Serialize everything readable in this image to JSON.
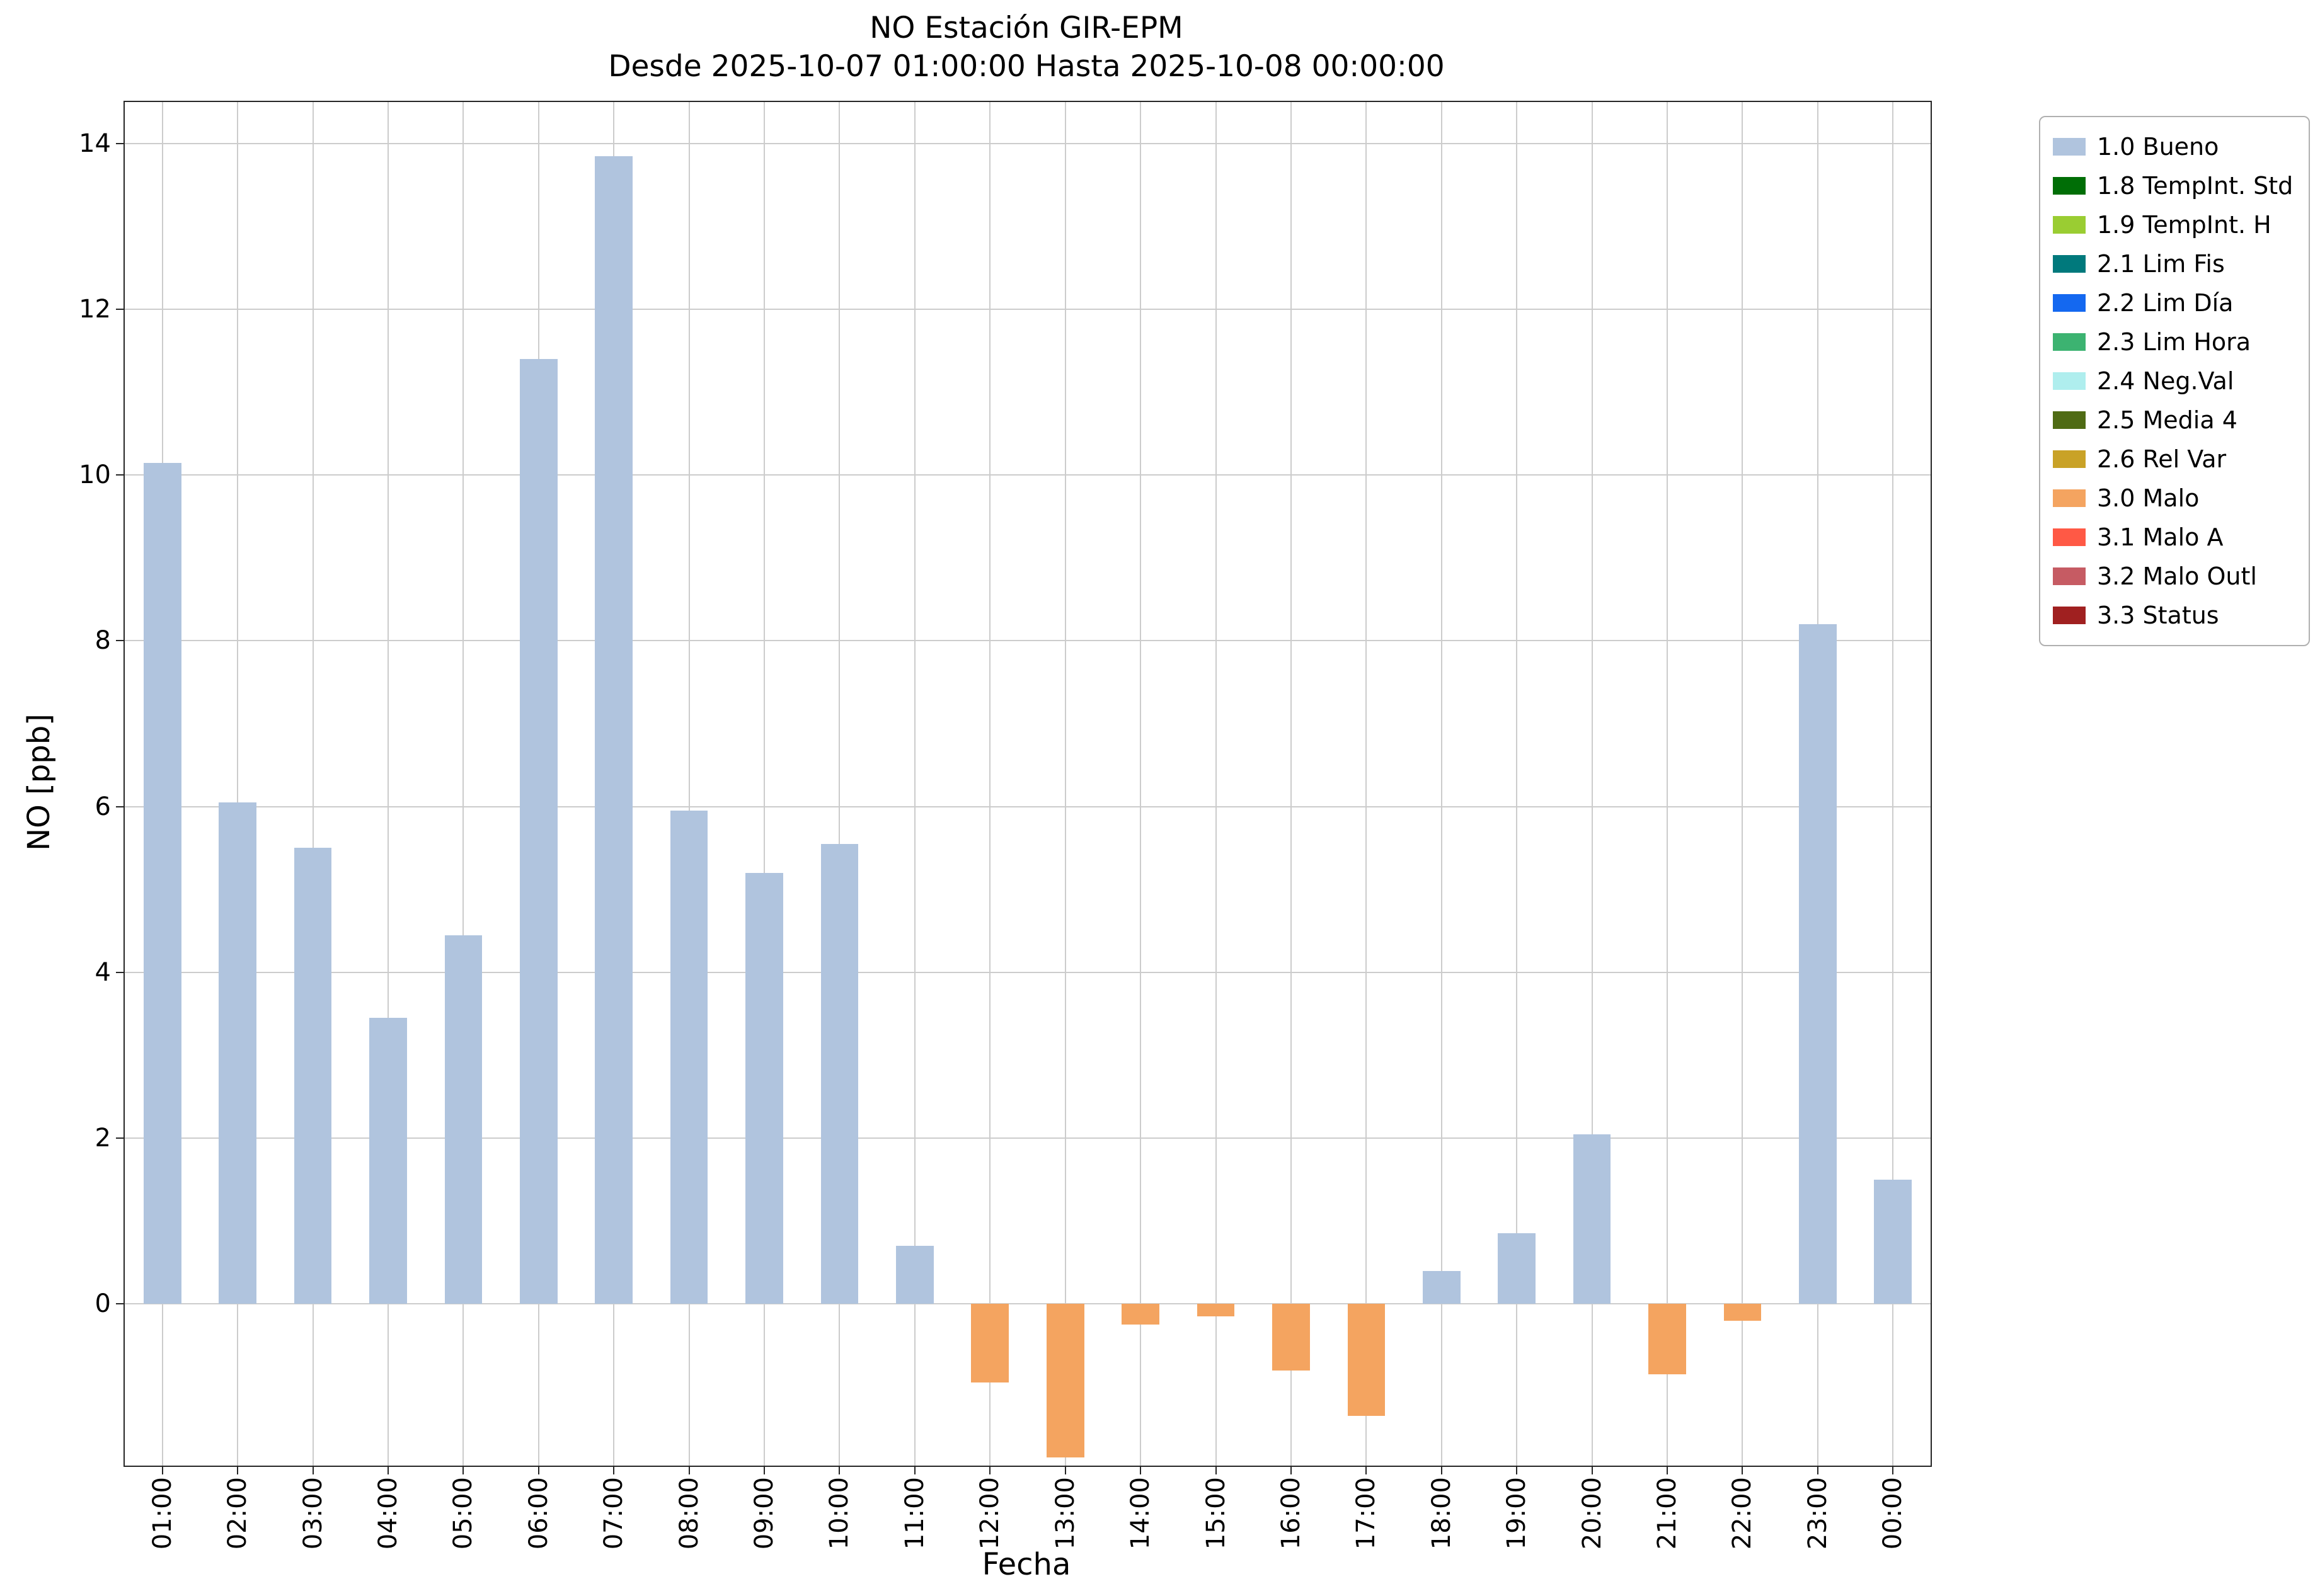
{
  "figure": {
    "title": "NO Estación GIR-EPM",
    "subtitle": "Desde 2025-10-07 01:00:00 Hasta 2025-10-08 00:00:00"
  },
  "chart_data": {
    "type": "bar",
    "title": "NO Estación GIR-EPM",
    "subtitle": "Desde 2025-10-07 01:00:00 Hasta 2025-10-08 00:00:00",
    "xlabel": "Fecha",
    "ylabel": "NO [ppb]",
    "ylim": [
      -1.95,
      14.5
    ],
    "yticks": [
      0,
      2,
      4,
      6,
      8,
      10,
      12,
      14
    ],
    "grid": true,
    "legend_position": "outside-upper-right",
    "bar_width_fraction": 0.5,
    "categories": [
      "01:00",
      "02:00",
      "03:00",
      "04:00",
      "05:00",
      "06:00",
      "07:00",
      "08:00",
      "09:00",
      "10:00",
      "11:00",
      "12:00",
      "13:00",
      "14:00",
      "15:00",
      "16:00",
      "17:00",
      "18:00",
      "19:00",
      "20:00",
      "21:00",
      "22:00",
      "23:00",
      "00:00"
    ],
    "values": [
      10.15,
      6.05,
      5.5,
      3.45,
      4.45,
      11.4,
      13.85,
      5.95,
      5.2,
      5.55,
      0.7,
      -0.95,
      -1.85,
      -0.25,
      -0.15,
      -0.8,
      -1.35,
      0.4,
      0.85,
      2.05,
      -0.85,
      -0.2,
      8.2,
      1.5
    ],
    "bar_flags": [
      "1.0 Bueno",
      "1.0 Bueno",
      "1.0 Bueno",
      "1.0 Bueno",
      "1.0 Bueno",
      "1.0 Bueno",
      "1.0 Bueno",
      "1.0 Bueno",
      "1.0 Bueno",
      "1.0 Bueno",
      "1.0 Bueno",
      "3.0 Malo",
      "3.0 Malo",
      "3.0 Malo",
      "3.0 Malo",
      "3.0 Malo",
      "3.0 Malo",
      "1.0 Bueno",
      "1.0 Bueno",
      "1.0 Bueno",
      "3.0 Malo",
      "3.0 Malo",
      "1.0 Bueno",
      "1.0 Bueno"
    ],
    "legend": [
      {
        "label": "1.0 Bueno",
        "color": "#B0C4DE"
      },
      {
        "label": "1.8 TempInt. Std",
        "color": "#006E06"
      },
      {
        "label": "1.9 TempInt. H",
        "color": "#9ACD32"
      },
      {
        "label": "2.1 Lim Fis",
        "color": "#00797C"
      },
      {
        "label": "2.2 Lim Día",
        "color": "#1468F0"
      },
      {
        "label": "2.3 Lim Hora",
        "color": "#3CB371"
      },
      {
        "label": "2.4 Neg.Val",
        "color": "#AFEEEE"
      },
      {
        "label": "2.5 Media 4",
        "color": "#4F6B14"
      },
      {
        "label": "2.6 Rel Var",
        "color": "#C9A227"
      },
      {
        "label": "3.0 Malo",
        "color": "#F4A460"
      },
      {
        "label": "3.1 Malo A",
        "color": "#FF5945"
      },
      {
        "label": "3.2 Malo Outl",
        "color": "#C65B63"
      },
      {
        "label": "3.3 Status",
        "color": "#A02020"
      }
    ]
  },
  "colors": {
    "grid": "#cccccc",
    "axis": "#262626",
    "background": "#ffffff"
  }
}
